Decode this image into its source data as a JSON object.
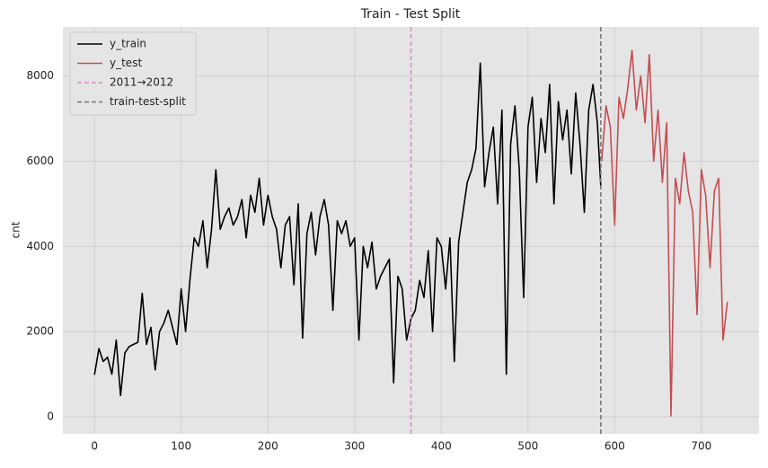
{
  "chart_data": {
    "type": "line",
    "title": "Train - Test Split",
    "ylabel": "cnt",
    "xlim": [
      -36.5,
      766.5
    ],
    "ylim": [
      -400,
      9150
    ],
    "xticks": [
      0,
      100,
      200,
      300,
      400,
      500,
      600,
      700
    ],
    "yticks": [
      0,
      2000,
      4000,
      6000,
      8000
    ],
    "grid": true,
    "legend": "upper left",
    "series": [
      {
        "name": "y_train",
        "color": "#000000",
        "x": [
          0,
          5,
          10,
          15,
          20,
          25,
          30,
          35,
          40,
          45,
          50,
          55,
          60,
          65,
          70,
          75,
          80,
          85,
          90,
          95,
          100,
          105,
          110,
          115,
          120,
          125,
          130,
          135,
          140,
          145,
          150,
          155,
          160,
          165,
          170,
          175,
          180,
          185,
          190,
          195,
          200,
          205,
          210,
          215,
          220,
          225,
          230,
          235,
          240,
          245,
          250,
          255,
          260,
          265,
          270,
          275,
          280,
          285,
          290,
          295,
          300,
          305,
          310,
          315,
          320,
          325,
          330,
          335,
          340,
          345,
          350,
          355,
          360,
          365,
          370,
          375,
          380,
          385,
          390,
          395,
          400,
          405,
          410,
          415,
          420,
          425,
          430,
          435,
          440,
          445,
          450,
          455,
          460,
          465,
          470,
          475,
          480,
          485,
          490,
          495,
          500,
          505,
          510,
          515,
          520,
          525,
          530,
          535,
          540,
          545,
          550,
          555,
          560,
          565,
          570,
          575,
          580,
          584
        ],
        "values": [
          985,
          1600,
          1300,
          1400,
          1000,
          1800,
          500,
          1500,
          1650,
          1700,
          1750,
          2900,
          1700,
          2100,
          1100,
          2000,
          2200,
          2500,
          2100,
          1700,
          3000,
          2000,
          3200,
          4200,
          4000,
          4600,
          3500,
          4400,
          5800,
          4400,
          4700,
          4900,
          4500,
          4700,
          5100,
          4200,
          5200,
          4800,
          5600,
          4500,
          5200,
          4700,
          4400,
          3500,
          4500,
          4700,
          3100,
          5000,
          1850,
          4300,
          4800,
          3800,
          4700,
          5100,
          4500,
          2500,
          4600,
          4300,
          4600,
          4000,
          4200,
          1800,
          4000,
          3500,
          4100,
          3000,
          3300,
          3500,
          3700,
          800,
          3300,
          3000,
          1800,
          2300,
          2500,
          3200,
          2800,
          3900,
          2000,
          4200,
          4000,
          3000,
          4200,
          1300,
          4100,
          4800,
          5500,
          5800,
          6300,
          8300,
          5400,
          6200,
          6800,
          5000,
          7200,
          1000,
          6400,
          7300,
          5800,
          2800,
          6800,
          7500,
          5500,
          7000,
          6200,
          7800,
          5000,
          7400,
          6500,
          7200,
          5700,
          7600,
          6400,
          4800,
          7200,
          7800,
          6900,
          5400
        ]
      },
      {
        "name": "y_test",
        "color": "#c44e52",
        "x": [
          585,
          590,
          595,
          600,
          605,
          610,
          615,
          620,
          625,
          630,
          635,
          640,
          645,
          650,
          655,
          660,
          665,
          670,
          675,
          680,
          685,
          690,
          695,
          700,
          705,
          710,
          715,
          720,
          725,
          730
        ],
        "values": [
          6000,
          7300,
          6800,
          4500,
          7500,
          7000,
          7700,
          8600,
          7200,
          8000,
          6900,
          8500,
          6000,
          7200,
          5500,
          6900,
          22,
          5600,
          5000,
          6200,
          5300,
          4800,
          2400,
          5800,
          5200,
          3500,
          5300,
          5600,
          1800,
          2700
        ]
      }
    ],
    "vlines": [
      {
        "name": "2011→2012",
        "x": 365,
        "color": "#d48fc6"
      },
      {
        "name": "train-test-split",
        "x": 584,
        "color": "#777777"
      }
    ]
  }
}
